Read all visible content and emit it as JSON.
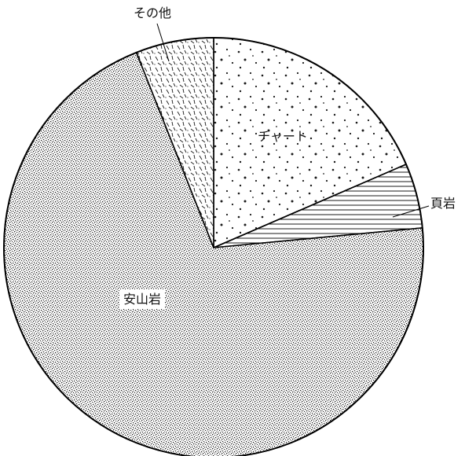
{
  "chart_data": {
    "type": "pie",
    "title": "",
    "start_angle_deg": 0,
    "direction": "clockwise",
    "slices": [
      {
        "label": "チャート",
        "value": 18.5,
        "pattern": "dots"
      },
      {
        "label": "頁岩",
        "value": 5.0,
        "pattern": "hlines"
      },
      {
        "label": "安山岩",
        "value": 70.5,
        "pattern": "stipple"
      },
      {
        "label": "その他",
        "value": 6.0,
        "pattern": "dashes"
      }
    ],
    "legend": "none",
    "colors": {
      "stroke": "#000000",
      "fill_background": "#ffffff",
      "ink": "#1a1a1a"
    }
  }
}
